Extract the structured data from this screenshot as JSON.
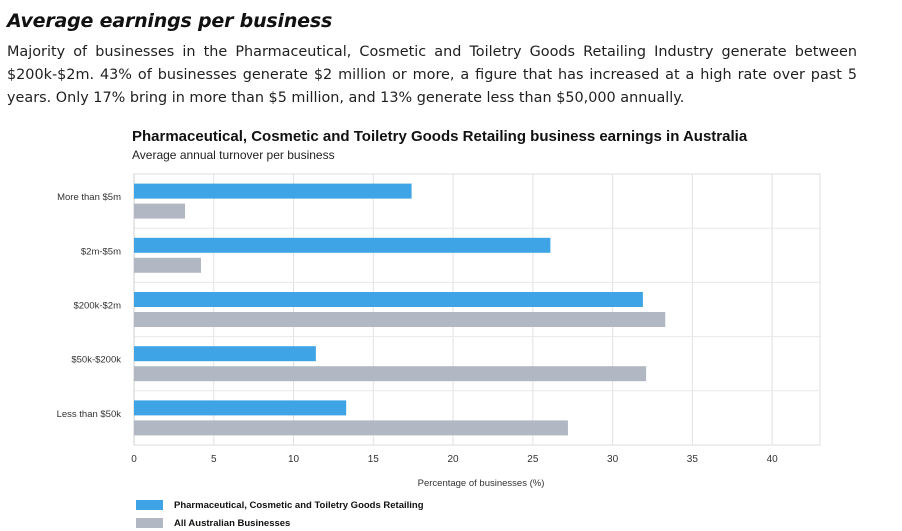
{
  "page": {
    "heading": "Average earnings per business",
    "paragraph": "Majority of businesses in the Pharmaceutical, Cosmetic and Toiletry Goods Retailing Industry generate between $200k-$2m. 43% of businesses generate $2 million or more, a figure that has increased at a high rate over past 5 years. Only 17% bring in more than $5 million, and 13% generate less than $50,000 annually."
  },
  "chart_data": {
    "type": "bar",
    "orientation": "horizontal",
    "title": "Pharmaceutical, Cosmetic and Toiletry Goods Retailing business earnings in Australia",
    "subtitle": "Average annual turnover per business",
    "xlabel": "Percentage of businesses (%)",
    "ylabel": "",
    "categories": [
      "More than $5m",
      "$2m-$5m",
      "$200k-$2m",
      "$50k-$200k",
      "Less than $50k"
    ],
    "series": [
      {
        "name": "Pharmaceutical, Cosmetic and Toiletry Goods Retailing",
        "color": "#3fa4e6",
        "values": [
          17.4,
          26.1,
          31.9,
          11.4,
          13.3
        ]
      },
      {
        "name": "All Australian Businesses",
        "color": "#b2b8c3",
        "values": [
          3.2,
          4.2,
          33.3,
          32.1,
          27.2
        ]
      }
    ],
    "xlim": [
      0,
      43
    ],
    "xticks": [
      0,
      5,
      10,
      15,
      20,
      25,
      30,
      35,
      40
    ],
    "grid": true,
    "legend_position": "bottom-left"
  }
}
